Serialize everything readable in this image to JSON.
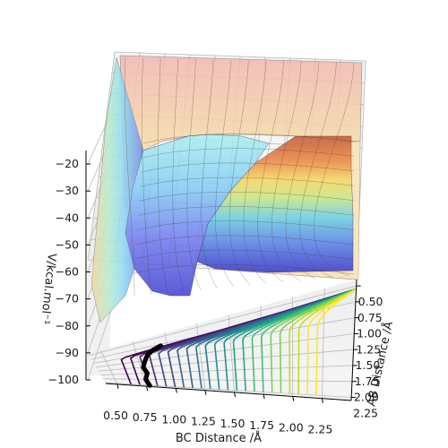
{
  "chart_data": {
    "type": "surface",
    "title": "",
    "xlabel": "BC Distance /Å",
    "ylabel": "AB Distance /Å",
    "zlabel": "V/kcal.mol⁻¹",
    "x_ticks": [
      0.5,
      0.75,
      1.0,
      1.25,
      1.5,
      1.75,
      2.0,
      2.25
    ],
    "x_tick_labels": [
      "0.50",
      "0.75",
      "1.00",
      "1.25",
      "1.50",
      "1.75",
      "2.00",
      "2.25"
    ],
    "y_ticks": [
      0.5,
      0.75,
      1.0,
      1.25,
      1.5,
      1.75,
      2.0,
      2.25
    ],
    "y_tick_labels": [
      "0.50",
      "0.75",
      "1.00",
      "1.25",
      "1.50",
      "1.75",
      "2.00",
      "2.25"
    ],
    "z_ticks": [
      -20,
      -30,
      -40,
      -50,
      -60,
      -70,
      -80,
      -90,
      -100
    ],
    "z_tick_labels": [
      "−20",
      "−30",
      "−40",
      "−50",
      "−60",
      "−70",
      "−80",
      "−90",
      "−100"
    ],
    "xlim": [
      0.4,
      2.5
    ],
    "ylim": [
      0.4,
      2.3
    ],
    "zlim": [
      -100,
      -15
    ],
    "grid": true,
    "surface_colormap": "jet",
    "contour_colormap": "viridis",
    "trajectory": {
      "color": "#000000",
      "points": [
        {
          "bc": 0.78,
          "ab": 2.26
        },
        {
          "bc": 0.76,
          "ab": 2.0
        },
        {
          "bc": 0.79,
          "ab": 1.75
        },
        {
          "bc": 0.77,
          "ab": 1.5
        },
        {
          "bc": 0.8,
          "ab": 1.25
        },
        {
          "bc": 0.83,
          "ab": 1.05
        },
        {
          "bc": 0.88,
          "ab": 0.9
        },
        {
          "bc": 0.95,
          "ab": 0.8
        }
      ]
    }
  }
}
